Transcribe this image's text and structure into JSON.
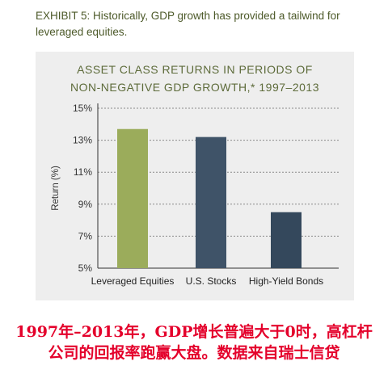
{
  "exhibit_text": "EXHIBIT 5: Historically, GDP growth has provided a tailwind for leveraged equities.",
  "caption": {
    "line1": "1997年–2013年，GDP增长普遍大于0时，高杠杆",
    "line2": "公司的回报率跑赢大盘。数据来自瑞士信贷"
  },
  "colors": {
    "leveraged": "#9bac5b",
    "stocks": "#3f5368",
    "highyield": "#34485c",
    "caption": "#e4002b"
  },
  "chart_data": {
    "type": "bar",
    "title_line1": "ASSET CLASS RETURNS IN PERIODS OF",
    "title_line2": "NON-NEGATIVE GDP GROWTH,* 1997–2013",
    "xlabel": "",
    "ylabel": "Return (%)",
    "categories": [
      "Leveraged Equities",
      "U.S. Stocks",
      "High-Yield Bonds"
    ],
    "values": [
      13.7,
      13.2,
      8.5
    ],
    "ylim": [
      5,
      15
    ],
    "yticks": [
      "5%",
      "7%",
      "9%",
      "11%",
      "13%",
      "15%"
    ],
    "ytick_values": [
      5,
      7,
      9,
      11,
      13,
      15
    ],
    "grid": true,
    "legend": "none"
  }
}
